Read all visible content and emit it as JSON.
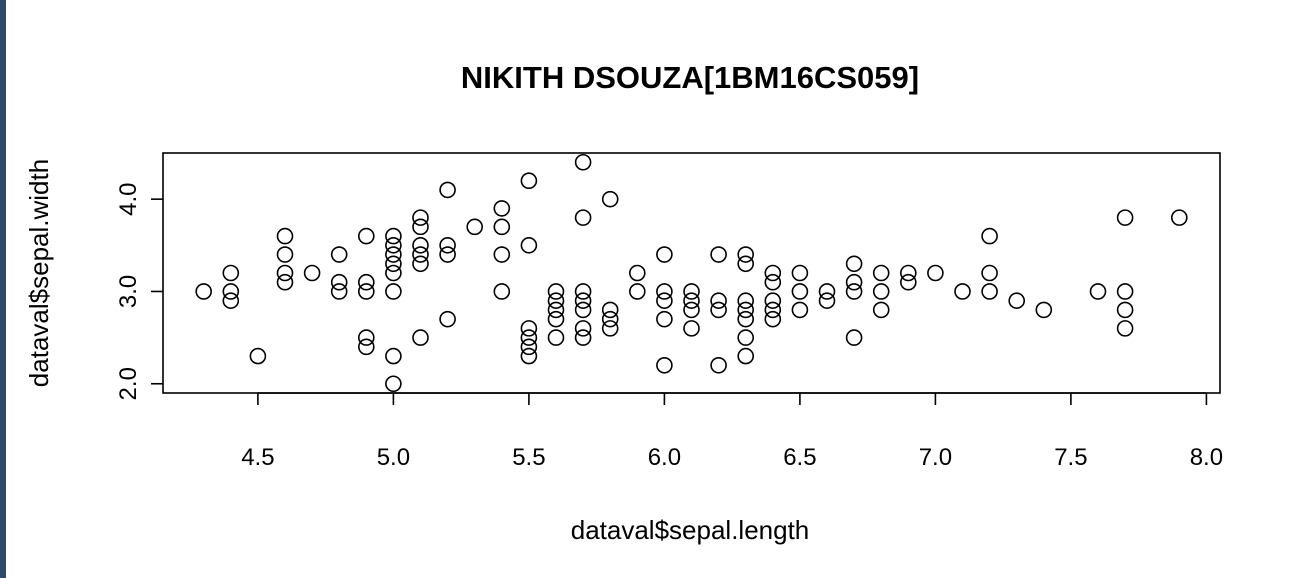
{
  "chart_data": {
    "type": "scatter",
    "title": "NIKITH DSOUZA[1BM16CS059]",
    "xlabel": "dataval$sepal.length",
    "ylabel": "dataval$sepal.width",
    "xlim": [
      4.3,
      7.9
    ],
    "ylim": [
      2.0,
      4.4
    ],
    "xticks": [
      4.5,
      5.0,
      5.5,
      6.0,
      6.5,
      7.0,
      7.5,
      8.0
    ],
    "xtick_labels": [
      "4.5",
      "5.0",
      "5.5",
      "6.0",
      "6.5",
      "7.0",
      "7.5",
      "8.0"
    ],
    "yticks": [
      2.0,
      3.0,
      4.0
    ],
    "ytick_labels": [
      "2.0",
      "3.0",
      "4.0"
    ],
    "grid": false,
    "marker": "open-circle",
    "points": [
      [
        4.3,
        3.0
      ],
      [
        4.4,
        3.2
      ],
      [
        4.4,
        3.0
      ],
      [
        4.4,
        2.9
      ],
      [
        4.5,
        2.3
      ],
      [
        4.6,
        3.6
      ],
      [
        4.6,
        3.4
      ],
      [
        4.6,
        3.2
      ],
      [
        4.6,
        3.1
      ],
      [
        4.7,
        3.2
      ],
      [
        4.8,
        3.4
      ],
      [
        4.8,
        3.1
      ],
      [
        4.8,
        3.0
      ],
      [
        4.9,
        3.6
      ],
      [
        4.9,
        3.1
      ],
      [
        4.9,
        3.0
      ],
      [
        4.9,
        2.5
      ],
      [
        4.9,
        2.4
      ],
      [
        5.0,
        3.6
      ],
      [
        5.0,
        3.5
      ],
      [
        5.0,
        3.4
      ],
      [
        5.0,
        3.3
      ],
      [
        5.0,
        3.2
      ],
      [
        5.0,
        3.0
      ],
      [
        5.0,
        2.3
      ],
      [
        5.0,
        2.0
      ],
      [
        5.1,
        3.8
      ],
      [
        5.1,
        3.7
      ],
      [
        5.1,
        3.5
      ],
      [
        5.1,
        3.4
      ],
      [
        5.1,
        3.3
      ],
      [
        5.1,
        2.5
      ],
      [
        5.2,
        4.1
      ],
      [
        5.2,
        3.5
      ],
      [
        5.2,
        3.4
      ],
      [
        5.2,
        2.7
      ],
      [
        5.3,
        3.7
      ],
      [
        5.4,
        3.9
      ],
      [
        5.4,
        3.7
      ],
      [
        5.4,
        3.4
      ],
      [
        5.4,
        3.0
      ],
      [
        5.5,
        4.2
      ],
      [
        5.5,
        3.5
      ],
      [
        5.5,
        2.6
      ],
      [
        5.5,
        2.5
      ],
      [
        5.5,
        2.4
      ],
      [
        5.5,
        2.3
      ],
      [
        5.6,
        3.0
      ],
      [
        5.6,
        2.9
      ],
      [
        5.6,
        2.8
      ],
      [
        5.6,
        2.7
      ],
      [
        5.6,
        2.5
      ],
      [
        5.7,
        4.4
      ],
      [
        5.7,
        3.8
      ],
      [
        5.7,
        3.0
      ],
      [
        5.7,
        2.9
      ],
      [
        5.7,
        2.8
      ],
      [
        5.7,
        2.6
      ],
      [
        5.7,
        2.5
      ],
      [
        5.8,
        4.0
      ],
      [
        5.8,
        2.8
      ],
      [
        5.8,
        2.7
      ],
      [
        5.8,
        2.6
      ],
      [
        5.9,
        3.2
      ],
      [
        5.9,
        3.0
      ],
      [
        6.0,
        3.4
      ],
      [
        6.0,
        3.0
      ],
      [
        6.0,
        2.9
      ],
      [
        6.0,
        2.7
      ],
      [
        6.0,
        2.2
      ],
      [
        6.1,
        3.0
      ],
      [
        6.1,
        2.9
      ],
      [
        6.1,
        2.8
      ],
      [
        6.1,
        2.6
      ],
      [
        6.2,
        3.4
      ],
      [
        6.2,
        2.9
      ],
      [
        6.2,
        2.8
      ],
      [
        6.2,
        2.2
      ],
      [
        6.3,
        3.4
      ],
      [
        6.3,
        3.3
      ],
      [
        6.3,
        2.9
      ],
      [
        6.3,
        2.8
      ],
      [
        6.3,
        2.7
      ],
      [
        6.3,
        2.5
      ],
      [
        6.3,
        2.3
      ],
      [
        6.4,
        3.2
      ],
      [
        6.4,
        3.1
      ],
      [
        6.4,
        2.9
      ],
      [
        6.4,
        2.8
      ],
      [
        6.4,
        2.7
      ],
      [
        6.5,
        3.2
      ],
      [
        6.5,
        3.0
      ],
      [
        6.5,
        2.8
      ],
      [
        6.6,
        3.0
      ],
      [
        6.6,
        2.9
      ],
      [
        6.7,
        3.3
      ],
      [
        6.7,
        3.1
      ],
      [
        6.7,
        3.0
      ],
      [
        6.7,
        2.5
      ],
      [
        6.8,
        3.2
      ],
      [
        6.8,
        3.0
      ],
      [
        6.8,
        2.8
      ],
      [
        6.9,
        3.2
      ],
      [
        6.9,
        3.1
      ],
      [
        7.0,
        3.2
      ],
      [
        7.1,
        3.0
      ],
      [
        7.2,
        3.6
      ],
      [
        7.2,
        3.2
      ],
      [
        7.2,
        3.0
      ],
      [
        7.3,
        2.9
      ],
      [
        7.4,
        2.8
      ],
      [
        7.6,
        3.0
      ],
      [
        7.7,
        3.8
      ],
      [
        7.7,
        3.0
      ],
      [
        7.7,
        2.8
      ],
      [
        7.7,
        2.6
      ],
      [
        7.9,
        3.8
      ]
    ]
  }
}
